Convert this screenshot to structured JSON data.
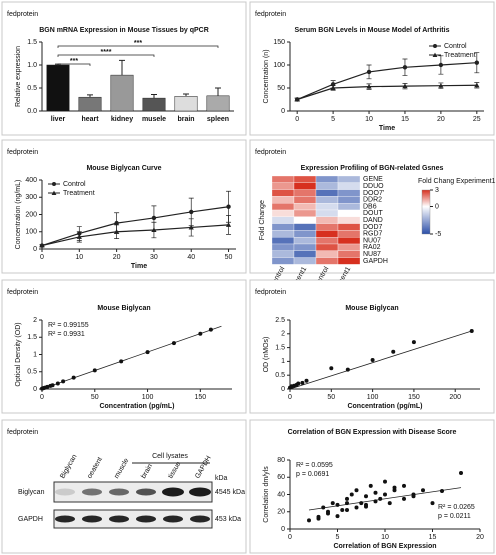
{
  "chart_data": [
    {
      "type": "bar",
      "logo": "fedprotein",
      "title": "BGN mRNA Expression in Mouse Tissues by qPCR",
      "ylabel": "Relative expression",
      "categories": [
        "liver",
        "heart",
        "kidney",
        "musele",
        "brain",
        "spleen"
      ],
      "values": [
        1.0,
        0.3,
        0.78,
        0.28,
        0.32,
        0.33
      ],
      "errors": [
        0.02,
        0.05,
        0.32,
        0.08,
        0.05,
        0.17
      ],
      "colors": [
        "#111111",
        "#777777",
        "#999999",
        "#555555",
        "#dddddd",
        "#aaaaaa"
      ],
      "ylim": [
        0,
        1.5
      ],
      "yticks": [
        {
          "value": 0,
          "label": "0.0"
        },
        {
          "value": 0.5,
          "label": "0.5"
        },
        {
          "value": 1,
          "label": "1.0"
        },
        {
          "value": 1.5,
          "label": "1.5"
        }
      ],
      "significance": [
        "***",
        "****",
        "***"
      ]
    },
    {
      "type": "line",
      "logo": "fedprotein",
      "title": "Serum BGN Levels in Mouse Model of Arthritis",
      "xlabel": "Time",
      "ylabel": "Concentration (n)",
      "x": [
        0,
        5,
        10,
        15,
        20,
        25
      ],
      "xlim": [
        -1,
        26
      ],
      "xticks": [
        0,
        5,
        10,
        15,
        20,
        25
      ],
      "ylim": [
        0,
        150
      ],
      "yticks": [
        0,
        50,
        100,
        150
      ],
      "legend": "upper right",
      "series": [
        {
          "name": "Control",
          "color": "#222222",
          "marker": "circle",
          "values": [
            25,
            58,
            85,
            95,
            100,
            105
          ],
          "errors": [
            3,
            8,
            15,
            18,
            20,
            22
          ]
        },
        {
          "name": "Treatment",
          "color": "#222222",
          "marker": "triangle",
          "values": [
            25,
            50,
            53,
            54,
            55,
            56
          ],
          "errors": [
            3,
            5,
            6,
            6,
            6,
            6
          ]
        }
      ]
    },
    {
      "type": "line",
      "logo": "fedprotein",
      "title": "Mouse Biglycan Curve",
      "xlabel": "Time",
      "ylabel": "Concentration (ng/mL)",
      "x": [
        0,
        10,
        20,
        30,
        40,
        50
      ],
      "xlim": [
        0,
        52
      ],
      "xticks": [
        0,
        10,
        20,
        30,
        40,
        50
      ],
      "ylim": [
        0,
        400
      ],
      "yticks": [
        0,
        100,
        200,
        300,
        400
      ],
      "legend": "upper left",
      "series": [
        {
          "name": "Control",
          "color": "#222222",
          "marker": "circle",
          "values": [
            20,
            90,
            150,
            180,
            215,
            245
          ],
          "errors": [
            5,
            40,
            60,
            70,
            80,
            90
          ]
        },
        {
          "name": "Treatment",
          "color": "#222222",
          "marker": "triangle",
          "values": [
            20,
            70,
            100,
            110,
            125,
            140
          ],
          "errors": [
            5,
            30,
            40,
            45,
            50,
            55
          ]
        }
      ]
    },
    {
      "type": "heatmap",
      "logo": "fedprotein",
      "title": "Expression Profiling of BGN-related Gsnes",
      "ylabel": "Fold Change",
      "legend_title": "Fold Chang Experiment1",
      "rows": [
        "GENE",
        "DDUO",
        "DOO7'",
        "DDR2",
        "DB6",
        "DOUT",
        "DAND",
        "DOD7",
        "RGD7",
        "NU07",
        "RA02",
        "NU87",
        "GAPDH"
      ],
      "columns": [
        "Control",
        "Experiment1",
        "Control",
        "Experiment1"
      ],
      "matrix": [
        [
          2,
          2.5,
          -3,
          -2
        ],
        [
          1.5,
          3,
          -2,
          -1
        ],
        [
          2.5,
          2,
          -4,
          -3
        ],
        [
          1,
          2,
          -2,
          -3
        ],
        [
          2,
          1,
          -1,
          -2
        ],
        [
          0.5,
          1.5,
          -1,
          0
        ],
        [
          -1,
          0,
          1,
          0.5
        ],
        [
          -3,
          -4,
          2,
          2.5
        ],
        [
          -2,
          -3,
          3,
          2
        ],
        [
          -4,
          -2,
          2,
          3
        ],
        [
          -3,
          -3,
          2.5,
          1.5
        ],
        [
          -2,
          -4,
          1,
          2
        ],
        [
          -3,
          -2,
          2,
          3
        ]
      ],
      "clim": [
        -5,
        3
      ],
      "cbar_ticks": [
        3,
        0,
        -5
      ]
    },
    {
      "type": "scatter",
      "logo": "fedprotein",
      "title": "Mouse Biglycan",
      "xlabel": "Concentration (pg/mL)",
      "ylabel": "Optical Density (OD)",
      "x": [
        0,
        1,
        2,
        3,
        5,
        8,
        10,
        15,
        20,
        30,
        50,
        75,
        100,
        125,
        150,
        160
      ],
      "y": [
        0.01,
        0.02,
        0.03,
        0.04,
        0.06,
        0.09,
        0.11,
        0.16,
        0.22,
        0.33,
        0.54,
        0.8,
        1.07,
        1.33,
        1.6,
        1.72
      ],
      "trendline": {
        "x": [
          0,
          170
        ],
        "y": [
          0,
          1.82
        ]
      },
      "xlim": [
        0,
        180
      ],
      "xticks": [
        0,
        50,
        100,
        150
      ],
      "ylim": [
        0,
        2
      ],
      "yticks": [
        0,
        0.5,
        1,
        1.5,
        2
      ],
      "annotations": [
        {
          "text": "R² = 0.99155",
          "loc": "upper left"
        },
        {
          "text": "R² = 0.9931",
          "loc": "upper left"
        }
      ]
    },
    {
      "type": "scatter",
      "logo": "fedprotein",
      "title": "Mouse Biglycan",
      "xlabel": "Concentration (pg/mL)",
      "ylabel": "OD (nMOs)",
      "x": [
        0,
        2,
        5,
        8,
        10,
        15,
        20,
        50,
        70,
        100,
        125,
        150,
        220
      ],
      "y": [
        0.05,
        0.1,
        0.12,
        0.15,
        0.2,
        0.22,
        0.3,
        0.75,
        0.7,
        1.05,
        1.35,
        1.7,
        2.1
      ],
      "trendline": {
        "x": [
          0,
          220
        ],
        "y": [
          0,
          2.1
        ]
      },
      "xlim": [
        0,
        230
      ],
      "xticks": [
        0,
        50,
        100,
        150,
        200
      ],
      "ylim": [
        0,
        2.5
      ],
      "yticks": [
        0,
        0.5,
        1,
        1.5,
        2,
        2.5
      ],
      "annotations": []
    },
    {
      "type": "blot",
      "logo": "fedprotein",
      "lanes": [
        "Biglycan",
        "oeatent",
        "muscle",
        "brain",
        "tissue",
        "GAPDH"
      ],
      "group_label": "Cell lysates",
      "unit": "kDa",
      "rows": [
        "Biglycan",
        "GAPDH"
      ],
      "sizes": [
        "4545 kDa",
        "453 kDa"
      ]
    },
    {
      "type": "scatter",
      "title": "Correlation of BGN Expression with Disease Score",
      "xlabel": "Correlation of BGN Expression",
      "ylabel": "Correlation dm/yls",
      "x": [
        2,
        3,
        3.5,
        4,
        4.5,
        5,
        5,
        5.5,
        6,
        6,
        6.5,
        7,
        7,
        7.5,
        8,
        8,
        8.5,
        9,
        9,
        9.5,
        10,
        10,
        10.5,
        11,
        12,
        12,
        13,
        14,
        15,
        3,
        4,
        6,
        8,
        11,
        13,
        16,
        18
      ],
      "y": [
        10,
        12,
        25,
        20,
        30,
        15,
        28,
        22,
        35,
        30,
        40,
        25,
        45,
        30,
        38,
        28,
        50,
        32,
        42,
        35,
        40,
        55,
        30,
        45,
        35,
        50,
        40,
        45,
        30,
        14,
        18,
        22,
        26,
        48,
        38,
        44,
        65
      ],
      "trendline": {
        "x": [
          2,
          18
        ],
        "y": [
          22,
          48
        ]
      },
      "xlim": [
        0,
        20
      ],
      "xticks": [
        0,
        5,
        10,
        15,
        20
      ],
      "ylim": [
        0,
        80
      ],
      "yticks": [
        0,
        20,
        40,
        60,
        80
      ],
      "annotations": [
        {
          "text": "R² = 0.0595",
          "loc": "upper left"
        },
        {
          "text": "p = 0.0691",
          "loc": "upper left"
        },
        {
          "text": "R² = 0.0265",
          "loc": "lower right"
        },
        {
          "text": "p = 0.0211",
          "loc": "lower right"
        }
      ]
    }
  ]
}
